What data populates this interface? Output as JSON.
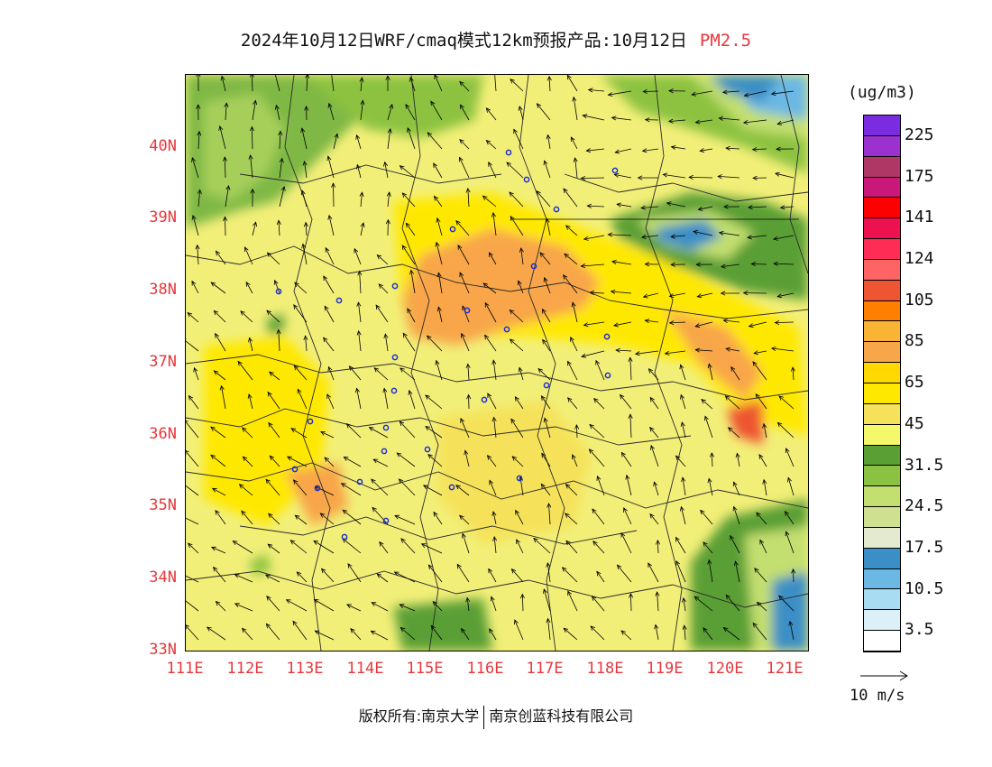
{
  "header": {
    "title": "2024年10月12日WRF/cmaq模式12km预报产品:10月12日",
    "pollutant": "PM2.5"
  },
  "map": {
    "lat_labels": [
      "40N",
      "39N",
      "38N",
      "37N",
      "36N",
      "35N",
      "34N",
      "33N"
    ],
    "lon_labels": [
      "111E",
      "112E",
      "113E",
      "114E",
      "115E",
      "116E",
      "117E",
      "118E",
      "119E",
      "120E",
      "121E"
    ],
    "lat_range": [
      33,
      41
    ],
    "lon_range": [
      111,
      121.4
    ]
  },
  "colorbar": {
    "unit": "(ug/m3)",
    "labels": [
      "225",
      "175",
      "141",
      "124",
      "105",
      "85",
      "65",
      "45",
      "31.5",
      "24.5",
      "17.5",
      "10.5",
      "3.5"
    ],
    "colors": [
      "#7b2be0",
      "#9b31cf",
      "#ae3766",
      "#c9177a",
      "#ff0000",
      "#ee1150",
      "#ff2d55",
      "#ff6464",
      "#ee5533",
      "#ff8000",
      "#f9b436",
      "#f8a64a",
      "#ffd800",
      "#ffe800",
      "#f5e25a",
      "#f4f86a",
      "#5a9f34",
      "#8cc241",
      "#c3df6f",
      "#cfe190",
      "#e4ead0",
      "#3a8fc6",
      "#6bb8e4",
      "#a8dcf2",
      "#dcf0f8",
      "#ffffff"
    ]
  },
  "reference_vector": {
    "label": "10 m/s"
  },
  "footer": {
    "copyright_left": "版权所有:南京大学",
    "copyright_right": "南京创蓝科技有限公司"
  }
}
